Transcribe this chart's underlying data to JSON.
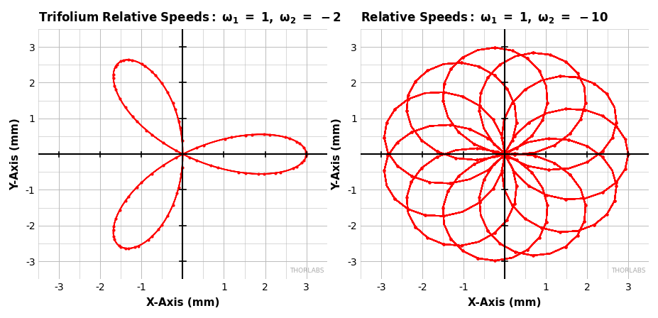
{
  "plot1": {
    "title1": "Trifolium Relative Speeds: ",
    "title2": "ω₁ = 1, ω₂ = -2",
    "omega1": 1,
    "omega2": -2,
    "R1": 1.5,
    "R2": 1.5,
    "n_points": 300,
    "xlim": [
      -3.5,
      3.5
    ],
    "ylim": [
      -3.5,
      3.5
    ],
    "xticks": [
      -3,
      -2,
      -1,
      1,
      2,
      3
    ],
    "yticks": [
      -3,
      -2,
      -1,
      1,
      2,
      3
    ],
    "n_markers": 90
  },
  "plot2": {
    "title1": "Relative Speeds: ",
    "title2": "ω₁ = 1, ω₂ = -10",
    "omega1": 1,
    "omega2": -10,
    "R1": 1.5,
    "R2": 1.5,
    "n_points": 2000,
    "xlim": [
      -3.5,
      3.5
    ],
    "ylim": [
      -3.5,
      3.5
    ],
    "xticks": [
      -3,
      -2,
      -1,
      1,
      2,
      3
    ],
    "yticks": [
      -3,
      -2,
      -1,
      1,
      2,
      3
    ],
    "n_markers": 400
  },
  "line_color": "#FF0000",
  "marker_color": "#FF0000",
  "bg_color": "#FFFFFF",
  "grid_color": "#BBBBBB",
  "xlabel": "X-Axis (mm)",
  "ylabel": "Y-Axis (mm)",
  "thorlabs_text": "THORLABS",
  "title_fontsize": 12,
  "label_fontsize": 11,
  "tick_fontsize": 10,
  "marker_size": 4.0,
  "line_width": 1.3
}
